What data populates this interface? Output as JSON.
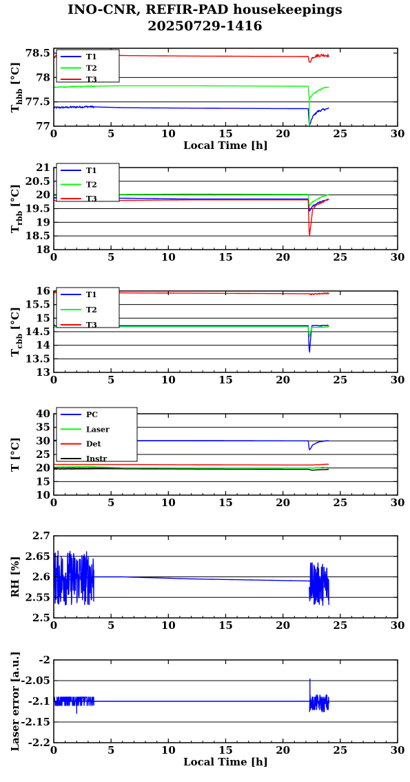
{
  "title_line1": "INO-CNR, REFIR-PAD housekeepings",
  "title_line2": "20250729-1416",
  "colors": {
    "blue": "#0000ff",
    "green": "#00ff00",
    "red": "#ff0000",
    "black": "#000000"
  },
  "chart_data": [
    {
      "type": "line",
      "ylabel_main": "T",
      "ylabel_sub": "hbb",
      "ylabel_tail": " [°C]",
      "xlabel": "Local Time [h]",
      "xlim": [
        0,
        30
      ],
      "ylim": [
        77,
        78.6
      ],
      "xticks": [
        0,
        5,
        10,
        15,
        20,
        25,
        30
      ],
      "yticks": [
        77,
        77.5,
        78,
        78.5
      ],
      "ytick_labels": [
        "77",
        "77.5",
        "78",
        "78.5"
      ],
      "grid": true,
      "legend_position": "top-left",
      "series": [
        {
          "name": "T1",
          "color": "#0000ff",
          "noise": 0.02,
          "x": [
            0,
            3,
            6,
            12,
            22.2,
            22.3,
            22.6,
            23,
            23.5,
            24
          ],
          "y": [
            77.38,
            77.4,
            77.38,
            77.37,
            77.36,
            77.0,
            77.2,
            77.3,
            77.34,
            77.36
          ]
        },
        {
          "name": "T2",
          "color": "#00ff00",
          "noise": 0.012,
          "x": [
            0,
            3,
            6,
            12,
            22.2,
            22.3,
            22.6,
            23,
            23.5,
            24
          ],
          "y": [
            77.8,
            77.82,
            77.83,
            77.83,
            77.82,
            77.55,
            77.65,
            77.72,
            77.78,
            77.81
          ],
          "extra": [
            [
              22.3,
              77.0
            ],
            [
              22.3,
              77.6
            ]
          ]
        },
        {
          "name": "T3",
          "color": "#ff0000",
          "noise": 0.03,
          "x": [
            0,
            3,
            6,
            12,
            22.2,
            22.3,
            22.6,
            23,
            23.5,
            24
          ],
          "y": [
            78.43,
            78.5,
            78.45,
            78.44,
            78.43,
            78.3,
            78.42,
            78.45,
            78.46,
            78.45
          ]
        }
      ]
    },
    {
      "type": "line",
      "ylabel_main": "T",
      "ylabel_sub": "rbb",
      "ylabel_tail": " [°C]",
      "xlabel": "",
      "xlim": [
        0,
        30
      ],
      "ylim": [
        18,
        21
      ],
      "xticks": [
        0,
        5,
        10,
        15,
        20,
        25,
        30
      ],
      "yticks": [
        18,
        18.5,
        19,
        19.5,
        20,
        20.5,
        21
      ],
      "ytick_labels": [
        "18",
        "18.5",
        "19",
        "19.5",
        "20",
        "20.5",
        "21"
      ],
      "grid": true,
      "legend_position": "top-left",
      "series": [
        {
          "name": "T1",
          "color": "#0000ff",
          "noise": 0.02,
          "x": [
            0,
            3,
            6,
            12,
            22.2,
            22.3,
            22.6,
            23,
            23.5,
            24
          ],
          "y": [
            19.9,
            19.9,
            19.88,
            19.85,
            19.85,
            19.4,
            19.6,
            19.7,
            19.78,
            19.85
          ]
        },
        {
          "name": "T2",
          "color": "#00ff00",
          "noise": 0.02,
          "x": [
            0,
            3,
            6,
            12,
            22.2,
            22.3,
            22.6,
            23,
            23.5,
            24
          ],
          "y": [
            20.0,
            20.02,
            20.02,
            20.03,
            20.02,
            19.6,
            19.75,
            19.85,
            19.95,
            20.0
          ]
        },
        {
          "name": "T3",
          "color": "#ff0000",
          "noise": 0.02,
          "x": [
            0,
            3,
            6,
            12,
            22.2,
            22.3,
            22.6,
            23,
            23.5,
            24
          ],
          "y": [
            19.8,
            19.8,
            19.8,
            19.82,
            19.82,
            18.45,
            19.5,
            19.65,
            19.75,
            19.85
          ]
        }
      ]
    },
    {
      "type": "line",
      "ylabel_main": "T",
      "ylabel_sub": "cbb",
      "ylabel_tail": " [°C]",
      "xlabel": "",
      "xlim": [
        0,
        30
      ],
      "ylim": [
        13,
        16
      ],
      "xticks": [
        0,
        5,
        10,
        15,
        20,
        25,
        30
      ],
      "yticks": [
        13,
        13.5,
        14,
        14.5,
        15,
        15.5,
        16
      ],
      "ytick_labels": [
        "13",
        "13.5",
        "14",
        "14.5",
        "15",
        "15.5",
        "16"
      ],
      "grid": true,
      "legend_position": "top-left",
      "series": [
        {
          "name": "T1",
          "color": "#0000ff",
          "noise": 0.015,
          "x": [
            0,
            3,
            6,
            12,
            22.2,
            22.3,
            22.5,
            23,
            24
          ],
          "y": [
            14.73,
            14.73,
            14.72,
            14.72,
            14.72,
            13.65,
            14.72,
            14.72,
            14.73
          ]
        },
        {
          "name": "T2",
          "color": "#00ff00",
          "noise": 0.015,
          "x": [
            0,
            3,
            6,
            12,
            22.2,
            22.3,
            22.5,
            23,
            24
          ],
          "y": [
            14.67,
            14.68,
            14.68,
            14.68,
            14.68,
            14.3,
            14.65,
            14.66,
            14.68
          ]
        },
        {
          "name": "T3",
          "color": "#ff0000",
          "noise": 0.025,
          "x": [
            0,
            3,
            6,
            12,
            22.2,
            22.5,
            23,
            24
          ],
          "y": [
            15.95,
            15.97,
            15.93,
            15.92,
            15.9,
            15.88,
            15.9,
            15.92
          ]
        }
      ]
    },
    {
      "type": "line",
      "ylabel_main": "T",
      "ylabel_sub": "",
      "ylabel_tail": " [°C]",
      "xlabel": "",
      "xlim": [
        0,
        30
      ],
      "ylim": [
        10,
        40
      ],
      "xticks": [
        0,
        5,
        10,
        15,
        20,
        25,
        30
      ],
      "yticks": [
        10,
        15,
        20,
        25,
        30,
        35,
        40
      ],
      "ytick_labels": [
        "10",
        "15",
        "20",
        "25",
        "30",
        "35",
        "40"
      ],
      "grid": true,
      "legend_position": "top-left",
      "series": [
        {
          "name": "PC",
          "color": "#0000ff",
          "noise": 0.1,
          "x": [
            0,
            3,
            6,
            12,
            22.2,
            22.3,
            22.6,
            23,
            23.5,
            24
          ],
          "y": [
            30.2,
            30.2,
            30.1,
            30.1,
            30.0,
            26.5,
            28.5,
            29.4,
            29.9,
            30.1
          ]
        },
        {
          "name": "Laser",
          "color": "#00ff00",
          "noise": 0.15,
          "x": [
            0,
            3,
            6,
            12,
            22.2,
            22.5,
            24
          ],
          "y": [
            20.3,
            20.5,
            20.1,
            20.0,
            20.0,
            20.0,
            20.2
          ]
        },
        {
          "name": "Det",
          "color": "#ff0000",
          "noise": 0.05,
          "x": [
            0,
            3,
            6,
            12,
            22.2,
            22.5,
            24
          ],
          "y": [
            21.3,
            21.3,
            21.3,
            21.2,
            21.1,
            21.1,
            21.4
          ]
        },
        {
          "name": "Instr",
          "color": "#000000",
          "noise": 0.05,
          "x": [
            0,
            3,
            6,
            12,
            22.2,
            22.5,
            23,
            24
          ],
          "y": [
            19.6,
            19.7,
            19.7,
            19.6,
            19.5,
            19.2,
            19.3,
            19.5
          ]
        }
      ]
    },
    {
      "type": "line",
      "ylabel_main": "RH [%]",
      "ylabel_sub": "",
      "ylabel_tail": "",
      "xlabel": "",
      "xlim": [
        0,
        30
      ],
      "ylim": [
        2.5,
        2.7
      ],
      "xticks": [
        0,
        5,
        10,
        15,
        20,
        25,
        30
      ],
      "yticks": [
        2.5,
        2.55,
        2.6,
        2.65,
        2.7
      ],
      "ytick_labels": [
        "2.5",
        "2.55",
        "2.6",
        "2.65",
        "2.7"
      ],
      "grid": true,
      "legend_position": "none",
      "series": [
        {
          "name": "",
          "color": "#0000ff",
          "noise": 0.0,
          "x": [
            0,
            3.4,
            6,
            12,
            22.2,
            24
          ],
          "y": [
            2.59,
            2.6,
            2.6,
            2.595,
            2.59,
            2.59
          ],
          "bands": [
            {
              "x0": 0,
              "x1": 3.5,
              "lo": 2.53,
              "hi": 2.665,
              "n": 170
            },
            {
              "x0": 22.3,
              "x1": 24,
              "lo": 2.53,
              "hi": 2.635,
              "n": 90
            }
          ]
        }
      ]
    },
    {
      "type": "line",
      "ylabel_main": "Laser error [a.u.]",
      "ylabel_sub": "",
      "ylabel_tail": "",
      "xlabel": "Local Time [h]",
      "xlim": [
        0,
        30
      ],
      "ylim": [
        -2.2,
        -2.0
      ],
      "xticks": [
        0,
        5,
        10,
        15,
        20,
        25,
        30
      ],
      "yticks": [
        -2.2,
        -2.15,
        -2.1,
        -2.05,
        -2.0
      ],
      "ytick_labels": [
        "-2.2",
        "-2.15",
        "-2.1",
        "-2.05",
        "-2"
      ],
      "grid": true,
      "legend_position": "none",
      "series": [
        {
          "name": "",
          "color": "#0000ff",
          "noise": 0.0,
          "x": [
            0,
            24
          ],
          "y": [
            -2.1,
            -2.1
          ],
          "bands": [
            {
              "x0": 0,
              "x1": 3.5,
              "lo": -2.11,
              "hi": -2.085,
              "n": 160,
              "quant": 0.01,
              "spikes": [
                [
                  2.0,
                  -2.13
                ]
              ]
            },
            {
              "x0": 22.3,
              "x1": 24,
              "lo": -2.125,
              "hi": -2.085,
              "n": 70,
              "quant": 0.005,
              "spikes": [
                [
                  22.35,
                  -2.045
                ]
              ]
            }
          ]
        }
      ]
    }
  ]
}
